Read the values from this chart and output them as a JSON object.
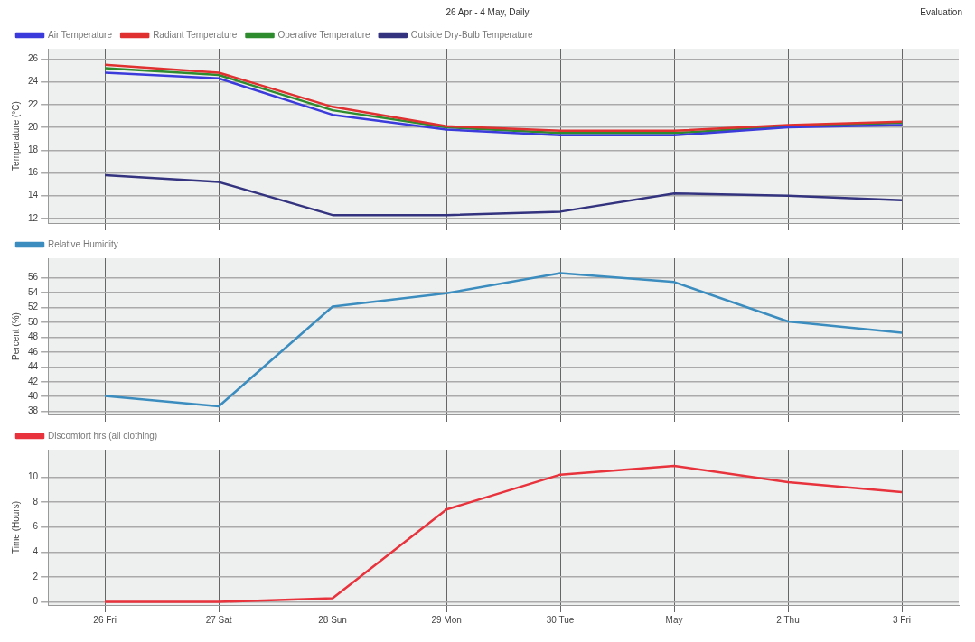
{
  "chart_data": [
    {
      "type": "line",
      "title": "26 Apr - 4 May, Daily",
      "annotations": [
        "Evaluation"
      ],
      "ylabel": "Temperature (°C)",
      "categories": [
        null,
        null,
        null,
        null,
        null,
        null,
        null,
        null
      ],
      "series": [
        {
          "name": "Air Temperature",
          "color": "#3b3bdc",
          "values": [
            24.8,
            24.3,
            21.1,
            19.8,
            19.3,
            19.3,
            20.0,
            20.2
          ]
        },
        {
          "name": "Radiant Temperature",
          "color": "#e03030",
          "values": [
            25.5,
            24.8,
            21.8,
            20.1,
            19.7,
            19.7,
            20.2,
            20.5
          ]
        },
        {
          "name": "Operative Temperature",
          "color": "#2e8b2e",
          "values": [
            25.2,
            24.6,
            21.5,
            20.0,
            19.5,
            19.5,
            20.1,
            20.4
          ]
        },
        {
          "name": "Outside Dry-Bulb Temperature",
          "color": "#33337f",
          "values": [
            15.8,
            15.2,
            12.3,
            12.3,
            12.6,
            14.2,
            14.0,
            13.6
          ]
        }
      ],
      "ylim": [
        11.6,
        26.9
      ],
      "yticks": [
        12,
        14,
        16,
        18,
        20,
        22,
        24,
        26
      ],
      "grid": true,
      "legend": "top left",
      "tick_labels": "y"
    },
    {
      "type": "line",
      "ylabel": "Percent (%)",
      "categories": [
        null,
        null,
        null,
        null,
        null,
        null,
        null,
        null
      ],
      "series": [
        {
          "name": "Relative Humidity",
          "color": "#3c8dbf",
          "values": [
            40.1,
            38.7,
            52.1,
            53.9,
            56.6,
            55.4,
            50.1,
            48.6
          ]
        }
      ],
      "ylim": [
        37.6,
        58.6
      ],
      "yticks": [
        38,
        40,
        42,
        44,
        46,
        48,
        50,
        52,
        54,
        56
      ],
      "grid": true,
      "legend": "top left",
      "tick_labels": "y"
    },
    {
      "type": "line",
      "ylabel": "Time (Hours)",
      "categories": [
        "26 Fri",
        "27 Sat",
        "28 Sun",
        "29 Mon",
        "30 Tue",
        "May",
        "2 Thu",
        "3 Fri"
      ],
      "series": [
        {
          "name": "Discomfort hrs (all clothing)",
          "color": "#e8323c",
          "values": [
            0,
            0,
            0.3,
            7.4,
            10.2,
            10.9,
            9.6,
            8.8
          ]
        }
      ],
      "ylim": [
        -0.25,
        12.2
      ],
      "yticks": [
        0,
        2,
        4,
        6,
        8,
        10
      ],
      "grid": true,
      "legend": "top left"
    }
  ]
}
